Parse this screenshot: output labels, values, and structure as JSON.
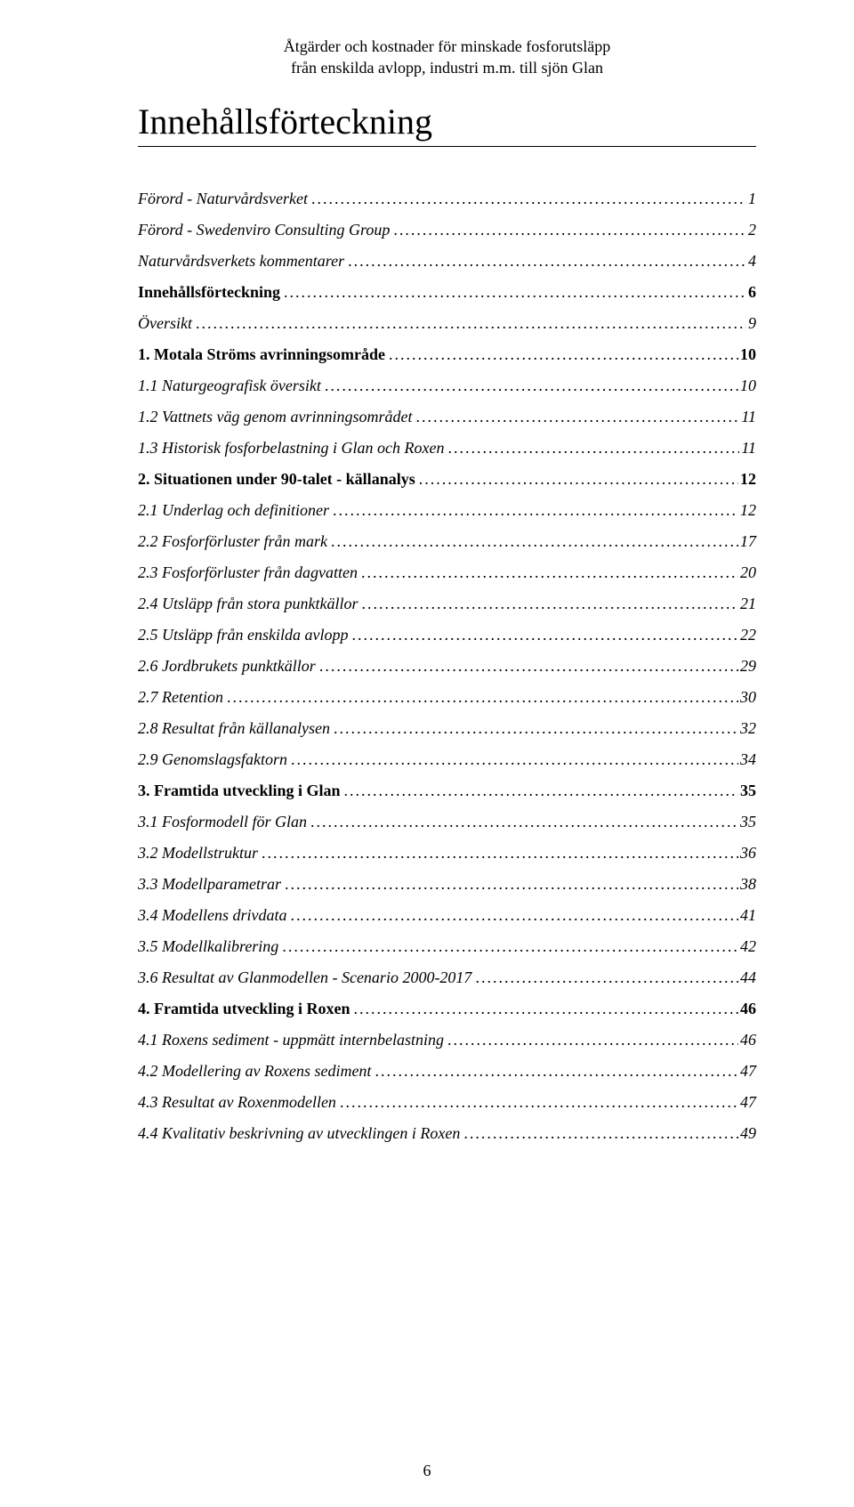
{
  "header": {
    "line1": "Åtgärder och kostnader för minskade fosforutsläpp",
    "line2": "från enskilda avlopp, industri m.m. till sjön Glan"
  },
  "main_title": "Innehållsförteckning",
  "page_number": "6",
  "toc": [
    {
      "title": "Förord - Naturvårdsverket",
      "page": "1",
      "style": "italic",
      "level": "top"
    },
    {
      "title": "Förord - Swedenviro Consulting Group",
      "page": "2",
      "style": "italic",
      "level": "top"
    },
    {
      "title": "Naturvårdsverkets kommentarer",
      "page": "4",
      "style": "italic",
      "level": "top"
    },
    {
      "title": "Innehållsförteckning",
      "page": "6",
      "style": "bold",
      "level": "top"
    },
    {
      "title": "Översikt",
      "page": "9",
      "style": "italic",
      "level": "top"
    },
    {
      "title": "1. Motala Ströms avrinningsområde",
      "page": "10",
      "style": "bold",
      "level": "chap"
    },
    {
      "title": "1.1 Naturgeografisk översikt",
      "page": "10",
      "style": "italic",
      "level": "sec"
    },
    {
      "title": "1.2 Vattnets väg genom avrinningsområdet",
      "page": "11",
      "style": "italic",
      "level": "sec"
    },
    {
      "title": "1.3 Historisk fosforbelastning i Glan och Roxen",
      "page": "11",
      "style": "italic",
      "level": "sec"
    },
    {
      "title": "2. Situationen under 90-talet - källanalys",
      "page": "12",
      "style": "bold",
      "level": "chap"
    },
    {
      "title": "2.1 Underlag och definitioner",
      "page": "12",
      "style": "italic",
      "level": "sec"
    },
    {
      "title": "2.2 Fosforförluster från mark",
      "page": "17",
      "style": "italic",
      "level": "sec"
    },
    {
      "title": "2.3 Fosforförluster från dagvatten",
      "page": "20",
      "style": "italic",
      "level": "sec"
    },
    {
      "title": "2.4 Utsläpp från stora punktkällor",
      "page": "21",
      "style": "italic",
      "level": "sec"
    },
    {
      "title": "2.5 Utsläpp från enskilda avlopp",
      "page": "22",
      "style": "italic",
      "level": "sec"
    },
    {
      "title": "2.6 Jordbrukets punktkällor",
      "page": "29",
      "style": "italic",
      "level": "sec"
    },
    {
      "title": "2.7 Retention",
      "page": "30",
      "style": "italic",
      "level": "sec"
    },
    {
      "title": "2.8 Resultat från källanalysen",
      "page": "32",
      "style": "italic",
      "level": "sec"
    },
    {
      "title": "2.9 Genomslagsfaktorn",
      "page": "34",
      "style": "italic",
      "level": "sec"
    },
    {
      "title": "3. Framtida utveckling i Glan",
      "page": "35",
      "style": "bold",
      "level": "chap"
    },
    {
      "title": "3.1 Fosformodell för Glan",
      "page": "35",
      "style": "italic",
      "level": "sec"
    },
    {
      "title": "3.2 Modellstruktur",
      "page": "36",
      "style": "italic",
      "level": "sec"
    },
    {
      "title": "3.3 Modellparametrar",
      "page": "38",
      "style": "italic",
      "level": "sec"
    },
    {
      "title": "3.4 Modellens drivdata",
      "page": "41",
      "style": "italic",
      "level": "sec"
    },
    {
      "title": "3.5 Modellkalibrering",
      "page": "42",
      "style": "italic",
      "level": "sec"
    },
    {
      "title": "3.6 Resultat av Glanmodellen - Scenario 2000-2017",
      "page": "44",
      "style": "italic",
      "level": "sec"
    },
    {
      "title": "4. Framtida utveckling i Roxen",
      "page": "46",
      "style": "bold",
      "level": "chap"
    },
    {
      "title": "4.1 Roxens sediment - uppmätt internbelastning",
      "page": "46",
      "style": "italic",
      "level": "sec"
    },
    {
      "title": "4.2 Modellering av Roxens sediment",
      "page": "47",
      "style": "italic",
      "level": "sec"
    },
    {
      "title": "4.3 Resultat av Roxenmodellen",
      "page": "47",
      "style": "italic",
      "level": "sec"
    },
    {
      "title": "4.4 Kvalitativ beskrivning av utvecklingen i Roxen",
      "page": "49",
      "style": "italic",
      "level": "sec"
    }
  ]
}
